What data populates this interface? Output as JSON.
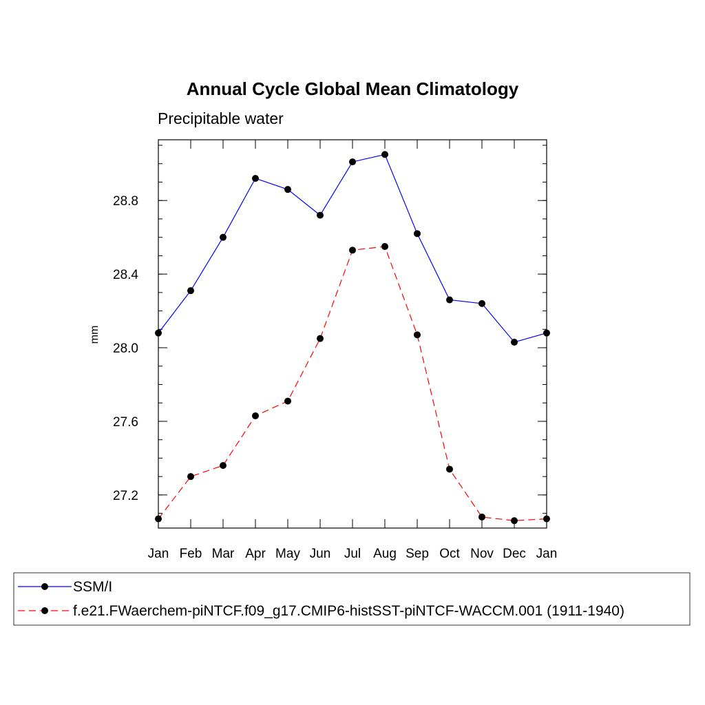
{
  "chart_data": {
    "type": "line",
    "title": "Annual Cycle Global Mean Climatology",
    "subtitle": "Precipitable water",
    "xlabel": "",
    "ylabel": "mm",
    "categories": [
      "Jan",
      "Feb",
      "Mar",
      "Apr",
      "May",
      "Jun",
      "Jul",
      "Aug",
      "Sep",
      "Oct",
      "Nov",
      "Dec",
      "Jan"
    ],
    "ylim": [
      27.02,
      29.13
    ],
    "yticks": [
      "27.2",
      "27.6",
      "28.0",
      "28.4",
      "28.8"
    ],
    "series": [
      {
        "name": "SSM/I",
        "color": "#0000ff",
        "dash": "solid",
        "values": [
          28.08,
          28.31,
          28.6,
          28.92,
          28.86,
          28.72,
          29.01,
          29.05,
          28.62,
          28.26,
          28.24,
          28.03,
          28.08
        ]
      },
      {
        "name": "f.e21.FWaerchem-piNTCF.f09_g17.CMIP6-histSST-piNTCF-WACCM.001 (1911-1940)",
        "color": "#ff0000",
        "dash": "dashed",
        "values": [
          27.07,
          27.3,
          27.36,
          27.63,
          27.71,
          28.05,
          28.53,
          28.55,
          28.07,
          27.34,
          27.08,
          27.06,
          27.07
        ]
      }
    ],
    "grid": false,
    "legend_position": "bottom"
  }
}
